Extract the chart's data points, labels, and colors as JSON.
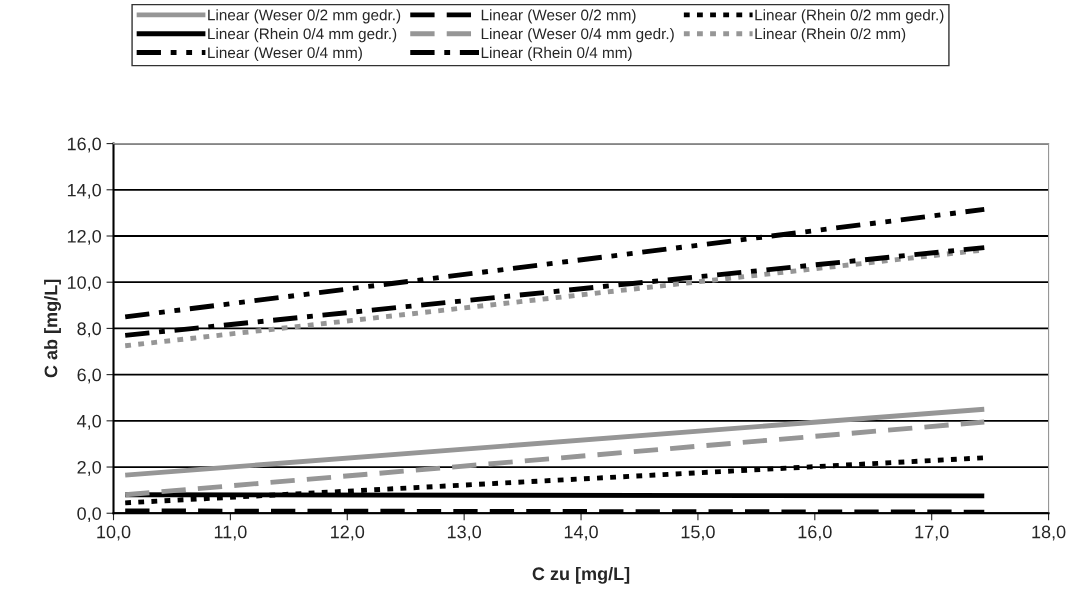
{
  "chart_data": {
    "type": "line",
    "xlabel": "C zu [mg/L]",
    "ylabel": "C ab [mg/L]",
    "x": [
      10.1,
      17.45
    ],
    "series": [
      {
        "name": "Linear (Weser 0/2 mm gedr.)",
        "color": "#969696",
        "line_style": "solid",
        "values": [
          1.65,
          4.5
        ]
      },
      {
        "name": "Linear (Weser 0/2 mm)",
        "color": "#000000",
        "line_style": "dashed",
        "values": [
          0.1,
          0.05
        ]
      },
      {
        "name": "Linear (Rhein 0/2 mm gedr.)",
        "color": "#000000",
        "line_style": "dotted",
        "values": [
          0.45,
          2.4
        ]
      },
      {
        "name": "Linear (Rhein 0/4 mm gedr.)",
        "color": "#000000",
        "line_style": "solid",
        "values": [
          0.8,
          0.75
        ]
      },
      {
        "name": "Linear (Weser 0/4 mm gedr.)",
        "color": "#969696",
        "line_style": "dashed",
        "values": [
          0.8,
          3.95
        ]
      },
      {
        "name": "Linear (Rhein 0/2 mm)",
        "color": "#969696",
        "line_style": "dotted",
        "values": [
          7.25,
          11.4
        ]
      },
      {
        "name": "Linear (Weser 0/4 mm)",
        "color": "#000000",
        "line_style": "dashdotdot",
        "values": [
          8.5,
          13.15
        ]
      },
      {
        "name": "Linear (Rhein 0/4 mm)",
        "color": "#000000",
        "line_style": "dashdot",
        "values": [
          7.7,
          11.5
        ]
      }
    ],
    "xlim": [
      10,
      18
    ],
    "xticks": [
      {
        "value": 10,
        "label": "10,0"
      },
      {
        "value": 11,
        "label": "11,0"
      },
      {
        "value": 12,
        "label": "12,0"
      },
      {
        "value": 13,
        "label": "13,0"
      },
      {
        "value": 14,
        "label": "14,0"
      },
      {
        "value": 15,
        "label": "15,0"
      },
      {
        "value": 16,
        "label": "16,0"
      },
      {
        "value": 17,
        "label": "17,0"
      },
      {
        "value": 18,
        "label": "18,0"
      }
    ],
    "ylim": [
      0,
      16
    ],
    "yticks": [
      {
        "value": 0,
        "label": "0,0"
      },
      {
        "value": 2,
        "label": "2,0"
      },
      {
        "value": 4,
        "label": "4,0"
      },
      {
        "value": 6,
        "label": "6,0"
      },
      {
        "value": 8,
        "label": "8,0"
      },
      {
        "value": 10,
        "label": "10,0"
      },
      {
        "value": 12,
        "label": "12,0"
      },
      {
        "value": 14,
        "label": "14,0"
      },
      {
        "value": 16,
        "label": "16,0"
      }
    ],
    "grid": "y",
    "legend": "top",
    "marker": "none"
  }
}
